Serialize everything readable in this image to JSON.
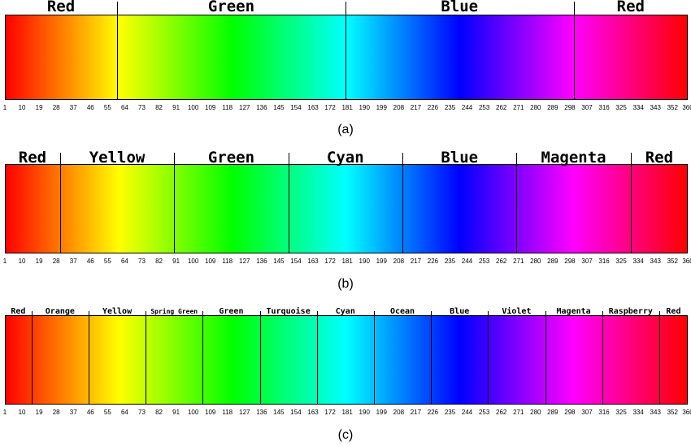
{
  "ticks": [
    "1",
    "10",
    "19",
    "28",
    "37",
    "46",
    "55",
    "64",
    "73",
    "82",
    "91",
    "100",
    "109",
    "118",
    "127",
    "136",
    "145",
    "154",
    "163",
    "172",
    "181",
    "190",
    "199",
    "208",
    "217",
    "226",
    "235",
    "244",
    "253",
    "262",
    "271",
    "280",
    "289",
    "298",
    "307",
    "316",
    "325",
    "334",
    "343",
    "352",
    "360"
  ],
  "panels": [
    {
      "caption": "(a)",
      "regions": [
        {
          "label": "Red",
          "start": 1,
          "end": 60
        },
        {
          "label": "Green",
          "start": 60,
          "end": 180
        },
        {
          "label": "Blue",
          "start": 180,
          "end": 300
        },
        {
          "label": "Red",
          "start": 300,
          "end": 360
        }
      ]
    },
    {
      "caption": "(b)",
      "regions": [
        {
          "label": "Red",
          "start": 1,
          "end": 30
        },
        {
          "label": "Yellow",
          "start": 30,
          "end": 90
        },
        {
          "label": "Green",
          "start": 90,
          "end": 150
        },
        {
          "label": "Cyan",
          "start": 150,
          "end": 210
        },
        {
          "label": "Blue",
          "start": 210,
          "end": 270
        },
        {
          "label": "Magenta",
          "start": 270,
          "end": 330
        },
        {
          "label": "Red",
          "start": 330,
          "end": 360
        }
      ]
    },
    {
      "caption": "(c)",
      "regions": [
        {
          "label": "Red",
          "start": 1,
          "end": 15
        },
        {
          "label": "Orange",
          "start": 15,
          "end": 45
        },
        {
          "label": "Yellow",
          "start": 45,
          "end": 75
        },
        {
          "label": "Spring Green",
          "start": 75,
          "end": 105
        },
        {
          "label": "Green",
          "start": 105,
          "end": 135
        },
        {
          "label": "Turquoise",
          "start": 135,
          "end": 165
        },
        {
          "label": "Cyan",
          "start": 165,
          "end": 195
        },
        {
          "label": "Ocean",
          "start": 195,
          "end": 225
        },
        {
          "label": "Blue",
          "start": 225,
          "end": 255
        },
        {
          "label": "Violet",
          "start": 255,
          "end": 285
        },
        {
          "label": "Magenta",
          "start": 285,
          "end": 315
        },
        {
          "label": "Raspberry",
          "start": 315,
          "end": 345
        },
        {
          "label": "Red",
          "start": 345,
          "end": 360
        }
      ]
    }
  ]
}
